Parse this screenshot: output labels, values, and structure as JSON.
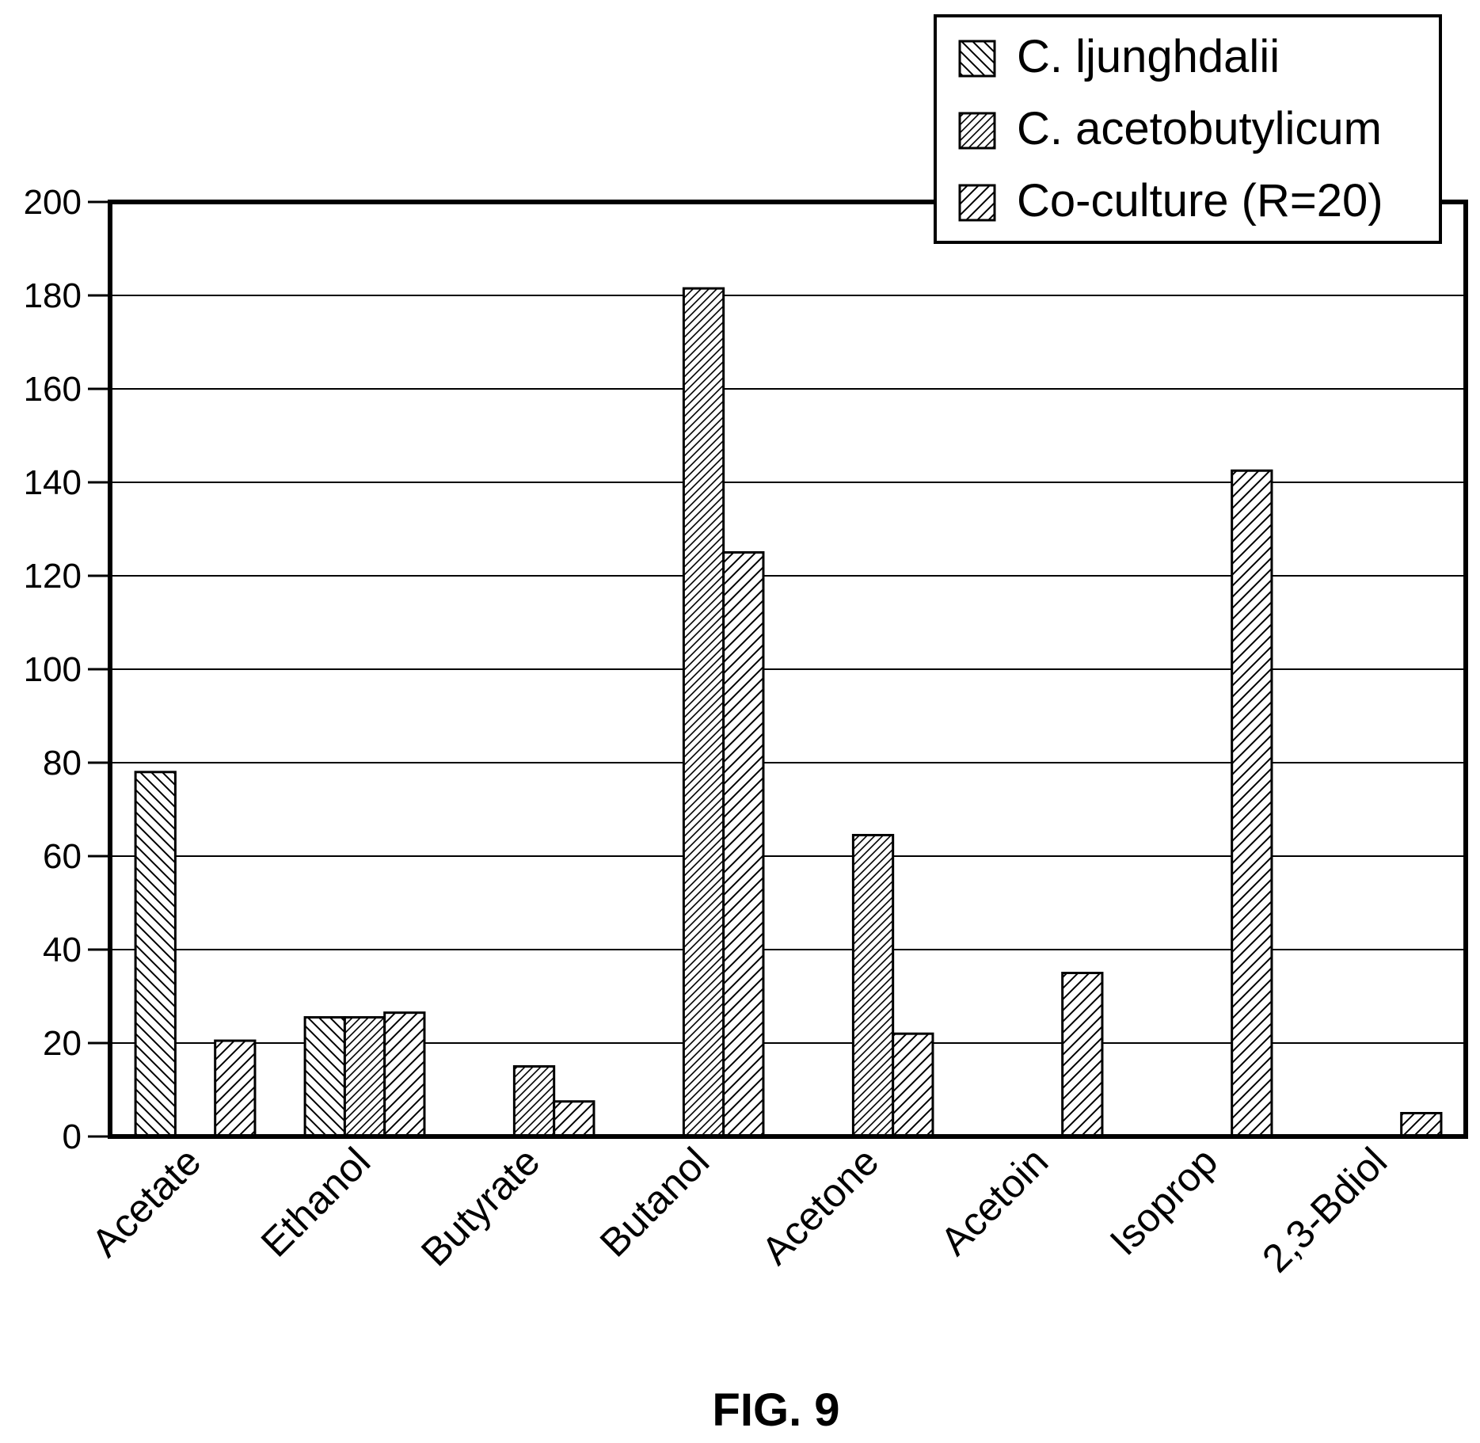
{
  "figure_label": "FIG. 9",
  "legend": {
    "items": [
      {
        "label": "C. ljunghdalii",
        "pattern": "hatch-back"
      },
      {
        "label": "C. acetobutylicum",
        "pattern": "hatch-fwd-dense"
      },
      {
        "label": "Co-culture (R=20)",
        "pattern": "hatch-fwd"
      }
    ]
  },
  "chart_data": {
    "type": "bar",
    "categories": [
      "Acetate",
      "Ethanol",
      "Butyrate",
      "Butanol",
      "Acetone",
      "Acetoin",
      "Isoprop",
      "2,3-Bdiol"
    ],
    "series": [
      {
        "name": "C. ljunghdalii",
        "values": [
          78,
          25.5,
          0,
          0,
          0,
          0,
          0,
          0
        ]
      },
      {
        "name": "C. acetobutylicum",
        "values": [
          0,
          25.5,
          15,
          181.5,
          64.5,
          0,
          0,
          0
        ]
      },
      {
        "name": "Co-culture (R=20)",
        "values": [
          20.5,
          26.5,
          7.5,
          125,
          22,
          35,
          142.5,
          5
        ]
      }
    ],
    "yticks": [
      "0",
      "20",
      "40",
      "60",
      "80",
      "100",
      "120",
      "140",
      "160",
      "180",
      "200"
    ],
    "ylim": [
      0,
      200
    ],
    "grid": true,
    "legend_position": "top-right",
    "xlabel": "",
    "ylabel": "",
    "title": ""
  }
}
